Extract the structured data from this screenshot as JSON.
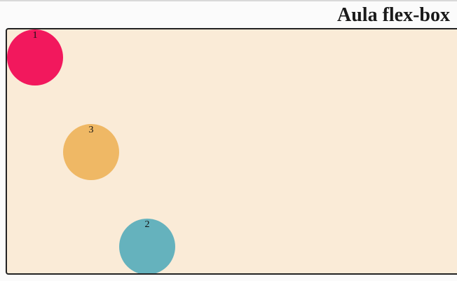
{
  "page": {
    "title": "Aula flex-box"
  },
  "container": {
    "background": "#faebd7",
    "border_color": "#222222",
    "items": [
      {
        "label": "1",
        "color": "#f2185d"
      },
      {
        "label": "3",
        "color": "#efb865"
      },
      {
        "label": "2",
        "color": "#65b2bd"
      }
    ]
  }
}
